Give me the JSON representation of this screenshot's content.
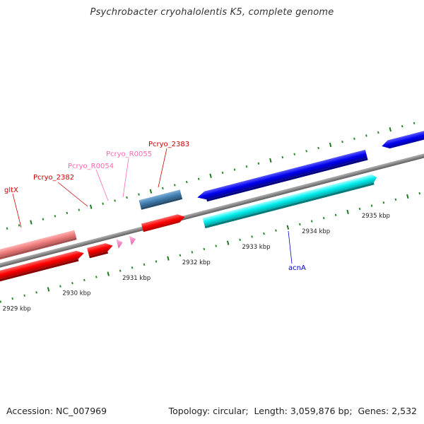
{
  "title": "Psychrobacter cryohalolentis K5, complete genome",
  "footer": {
    "accession_label": "Accession:",
    "accession_value": "NC_007969",
    "topology_label": "Topology:",
    "topology_value": "circular",
    "length_label": "Length:",
    "length_value": "3,059,876 bp",
    "genes_label": "Genes:",
    "genes_value": "2,532"
  },
  "colors": {
    "backbone": "#8a8a8a",
    "tick_major": "#1f7a1f",
    "tick_minor": "#2e8b2e",
    "gene_red": "#ff0000",
    "gene_pink": "#f08080",
    "gene_steelblue": "#4682b4",
    "gene_blue": "#0000ee",
    "gene_cyan": "#00eeee",
    "rna_pink": "#ff8ec8",
    "label_red": "#cc0000",
    "label_pink": "#ff69b4",
    "label_blue": "#0000cc"
  },
  "kbp_ticks": [
    {
      "position_kbp": 2929,
      "label": "2929 kbp"
    },
    {
      "position_kbp": 2930,
      "label": "2930 kbp"
    },
    {
      "position_kbp": 2931,
      "label": "2931 kbp"
    },
    {
      "position_kbp": 2932,
      "label": "2932 kbp"
    },
    {
      "position_kbp": 2933,
      "label": "2933 kbp"
    },
    {
      "position_kbp": 2934,
      "label": "2934 kbp"
    },
    {
      "position_kbp": 2935,
      "label": "2935 kbp"
    }
  ],
  "gene_labels": [
    {
      "name": "gltX",
      "color": "label_red"
    },
    {
      "name": "Pcryo_2382",
      "color": "label_red"
    },
    {
      "name": "Pcryo_R0054",
      "color": "label_pink"
    },
    {
      "name": "Pcryo_R0055",
      "color": "label_pink"
    },
    {
      "name": "Pcryo_2383",
      "color": "label_red"
    },
    {
      "name": "acnA",
      "color": "label_blue"
    }
  ]
}
